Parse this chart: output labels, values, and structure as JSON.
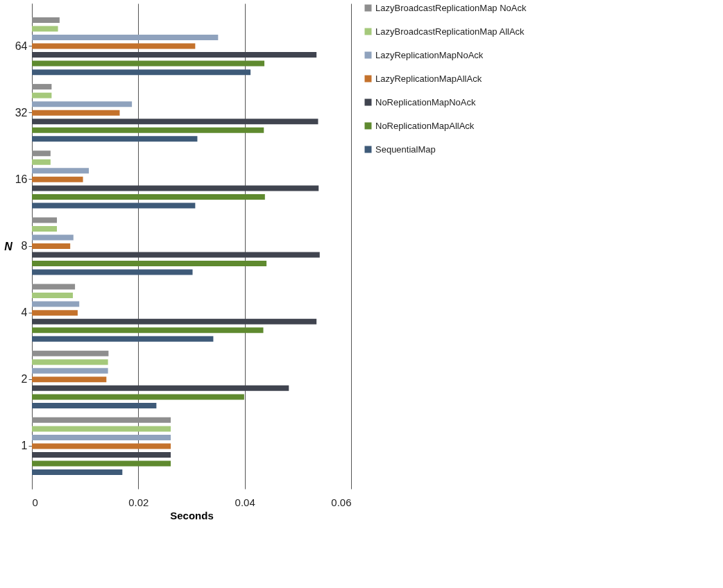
{
  "chart_data": {
    "type": "bar",
    "orientation": "horizontal",
    "xlabel": "Seconds",
    "ylabel": "N",
    "categories": [
      "64",
      "32",
      "16",
      "8",
      "4",
      "2",
      "1"
    ],
    "series": [
      {
        "name": "LazyBroadcastReplicationMap NoAck",
        "color": "#8e8e8e",
        "values": [
          0.0052,
          0.0037,
          0.0035,
          0.0047,
          0.0081,
          0.0144,
          0.0261
        ]
      },
      {
        "name": "LazyBroadcastReplicationMap AllAck",
        "color": "#a5c97b",
        "values": [
          0.0049,
          0.0037,
          0.0035,
          0.0047,
          0.0077,
          0.0143,
          0.0261
        ]
      },
      {
        "name": "LazyReplicationMapNoAck",
        "color": "#8fa2bd",
        "values": [
          0.035,
          0.0188,
          0.0107,
          0.0078,
          0.0089,
          0.0143,
          0.0261
        ]
      },
      {
        "name": "LazyReplicationMapAllAck",
        "color": "#c4722c",
        "values": [
          0.0307,
          0.0165,
          0.0096,
          0.0072,
          0.0086,
          0.014,
          0.0261
        ]
      },
      {
        "name": "NoReplicationMapNoAck",
        "color": "#40444f",
        "values": [
          0.0535,
          0.0538,
          0.0539,
          0.0541,
          0.0535,
          0.0483,
          0.0261
        ]
      },
      {
        "name": "NoReplicationMapAllAck",
        "color": "#5f8a2f",
        "values": [
          0.0437,
          0.0436,
          0.0438,
          0.0441,
          0.0435,
          0.0399,
          0.0261
        ]
      },
      {
        "name": "SequentialMap",
        "color": "#3e5a78",
        "values": [
          0.0411,
          0.0311,
          0.0307,
          0.0302,
          0.0341,
          0.0234,
          0.017
        ]
      }
    ],
    "xlim": [
      0,
      0.06
    ],
    "xticks": [
      0,
      0.02,
      0.04,
      0.06
    ],
    "grid": "x",
    "legend": "right"
  }
}
